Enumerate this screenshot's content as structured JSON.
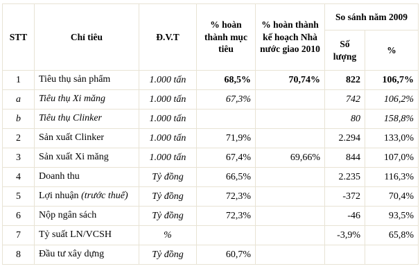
{
  "table": {
    "header": {
      "stt": "STT",
      "criteria": "Chỉ tiêu",
      "unit": "Đ.V.T",
      "pct_target": "% hoàn thành mục tiêu",
      "pct_plan": "% hoàn thành kế hoạch Nhà nước giao 2010",
      "compare_group": "So sánh năm 2009",
      "qty": "Số lượng",
      "pct": "%"
    },
    "row_keys": [
      "stt",
      "label",
      "unit",
      "pct_target",
      "pct_plan",
      "qty",
      "pct"
    ],
    "rows": [
      {
        "stt": "1",
        "label": "Tiêu thụ sản phẩm",
        "unit": "1.000 tấn",
        "pct_target": "68,5%",
        "pct_plan": "70,74%",
        "qty": "822",
        "pct": "106,7%",
        "style": "bold-values"
      },
      {
        "stt": "a",
        "label": "Tiêu thụ Xi măng",
        "unit": "1.000 tấn",
        "pct_target": "67,3%",
        "pct_plan": "",
        "qty": "742",
        "pct": "106,2%",
        "style": "italic"
      },
      {
        "stt": "b",
        "label": "Tiêu thụ Clinker",
        "unit": "1.000 tấn",
        "pct_target": "",
        "pct_plan": "",
        "qty": "80",
        "pct": "158,8%",
        "style": "italic"
      },
      {
        "stt": "2",
        "label": "Sản xuất Clinker",
        "unit": "1.000 tấn",
        "pct_target": "71,9%",
        "pct_plan": "",
        "qty": "2.294",
        "pct": "133,0%",
        "style": ""
      },
      {
        "stt": "3",
        "label": "Sản xuất Xi măng",
        "unit": "1.000 tấn",
        "pct_target": "67,4%",
        "pct_plan": "69,66%",
        "qty": "844",
        "pct": "107,0%",
        "style": ""
      },
      {
        "stt": "4",
        "label": "Doanh thu",
        "unit": "Tỷ đồng",
        "pct_target": "66,5%",
        "pct_plan": "",
        "qty": "2.235",
        "pct": "116,3%",
        "style": ""
      },
      {
        "stt": "5",
        "label": "Lợi nhuận ",
        "label_note": "(trước thuế)",
        "unit": "Tỷ đồng",
        "pct_target": "72,3%",
        "pct_plan": "",
        "qty": "-372",
        "pct": "70,4%",
        "style": ""
      },
      {
        "stt": "6",
        "label": "Nộp ngân sách",
        "unit": "Tỷ đồng",
        "pct_target": "72,3%",
        "pct_plan": "",
        "qty": "-46",
        "pct": "93,5%",
        "style": ""
      },
      {
        "stt": "7",
        "label": "Tỷ suất LN/VCSH",
        "unit": "%",
        "pct_target": "",
        "pct_plan": "",
        "qty": "-3,9%",
        "pct": "65,8%",
        "style": ""
      },
      {
        "stt": "8",
        "label": "Đầu tư xây dựng",
        "unit": "Tỷ đồng",
        "pct_target": "60,7%",
        "pct_plan": "",
        "qty": "",
        "pct": "",
        "style": ""
      }
    ]
  }
}
